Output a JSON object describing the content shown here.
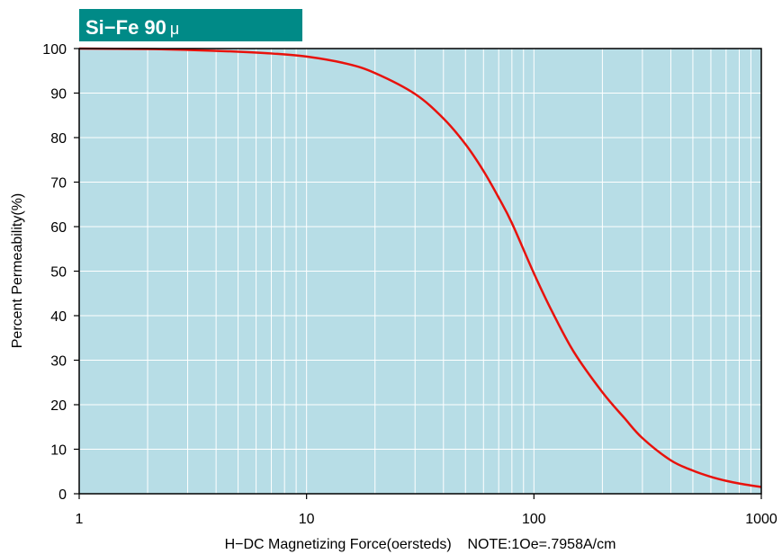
{
  "chart_data": {
    "type": "line",
    "title": "Si−Fe 90",
    "title_mu": "μ",
    "xlabel": "H−DC Magnetizing Force(oersteds)    NOTE:1Oe=.7958A/cm",
    "ylabel": "Percent Permeability(%)",
    "x_scale": "log",
    "xlim": [
      1,
      1000
    ],
    "ylim": [
      0,
      100
    ],
    "x_ticks": [
      "1",
      "10",
      "100",
      "1000"
    ],
    "y_ticks": [
      "0",
      "10",
      "20",
      "30",
      "40",
      "50",
      "60",
      "70",
      "80",
      "90",
      "100"
    ],
    "grid": true,
    "series": [
      {
        "color": "#e8120c",
        "x": [
          1,
          2,
          3,
          5,
          7,
          10,
          15,
          20,
          30,
          40,
          50,
          60,
          70,
          80,
          100,
          120,
          150,
          200,
          250,
          300,
          400,
          500,
          600,
          700,
          800,
          1000
        ],
        "y": [
          100,
          99.9,
          99.7,
          99.3,
          98.9,
          98.2,
          96.6,
          94.5,
          89.8,
          84.3,
          78.5,
          72.5,
          66.5,
          60.8,
          49.5,
          41.0,
          31.8,
          22.8,
          17.0,
          12.5,
          7.5,
          5.2,
          3.8,
          2.9,
          2.3,
          1.5
        ]
      }
    ],
    "colors": {
      "plot_background": "#b7dde6",
      "grid": "#ffffff",
      "banner": "#008a87",
      "curve": "#e8120c"
    }
  }
}
